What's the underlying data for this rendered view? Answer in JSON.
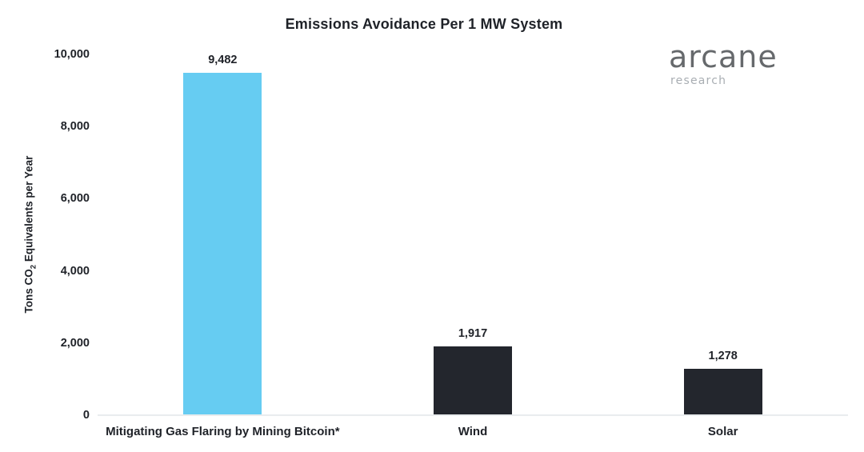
{
  "title": "Emissions Avoidance Per 1 MW System",
  "logo": {
    "name": "arcane",
    "subtitle": "research"
  },
  "chart_data": {
    "type": "bar",
    "title": "Emissions Avoidance Per 1 MW System",
    "categories": [
      "Mitigating Gas Flaring by Mining Bitcoin*",
      "Wind",
      "Solar"
    ],
    "values": [
      9482,
      1917,
      1278
    ],
    "value_labels": [
      "9,482",
      "1,917",
      "1,278"
    ],
    "bar_colors": [
      "#66ccf2",
      "#23262d",
      "#23262d"
    ],
    "xlabel": "",
    "ylabel": "Tons CO2 Equivalents per Year",
    "ylabel_parts": [
      "Tons CO",
      "2",
      " Equivalents per Year"
    ],
    "ylim": [
      0,
      10000
    ],
    "yticks": [
      0,
      2000,
      4000,
      6000,
      8000,
      10000
    ],
    "ytick_labels": [
      "0",
      "2,000",
      "4,000",
      "6,000",
      "8,000",
      "10,000"
    ],
    "grid": false,
    "legend": false
  },
  "colors": {
    "accent_blue": "#66ccf2",
    "dark_bar": "#23262d",
    "axis_line": "#e9ecee",
    "text": "#1f2228",
    "logo_gray": "#66696c",
    "logo_light_gray": "#a9aeb3"
  }
}
